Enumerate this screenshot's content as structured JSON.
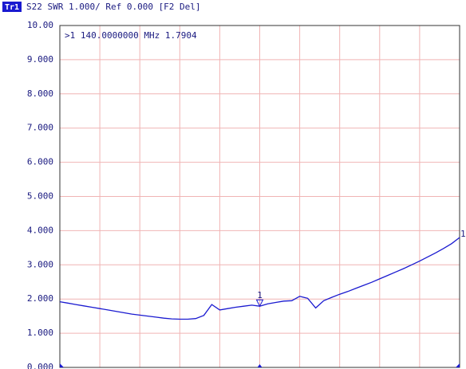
{
  "chart_data": {
    "type": "line",
    "trace_label": "Tr1",
    "header": "S22 SWR 1.000/ Ref 0.000 [F2 Del]",
    "marker_readout": ">1  140.0000000 MHz  1.7904",
    "marker_label": "1",
    "marker_index": 25,
    "trace_end_label": "1",
    "color": "#1a1ad0",
    "grid": true,
    "ylim": [
      0,
      10
    ],
    "yticks": [
      {
        "value": 0,
        "label": "0.000"
      },
      {
        "value": 1,
        "label": "1.000"
      },
      {
        "value": 2,
        "label": "2.000"
      },
      {
        "value": 3,
        "label": "3.000"
      },
      {
        "value": 4,
        "label": "4.000"
      },
      {
        "value": 5,
        "label": "5.000"
      },
      {
        "value": 6,
        "label": "6.000"
      },
      {
        "value": 7,
        "label": "7.000"
      },
      {
        "value": 8,
        "label": "8.000"
      },
      {
        "value": 9,
        "label": "9.000"
      },
      {
        "value": 10,
        "label": "10.00"
      }
    ],
    "values": [
      1.92,
      1.88,
      1.84,
      1.8,
      1.76,
      1.72,
      1.68,
      1.64,
      1.6,
      1.56,
      1.53,
      1.5,
      1.47,
      1.44,
      1.42,
      1.41,
      1.41,
      1.43,
      1.52,
      1.84,
      1.68,
      1.72,
      1.76,
      1.79,
      1.82,
      1.79,
      1.86,
      1.9,
      1.94,
      1.95,
      2.08,
      2.02,
      1.74,
      1.95,
      2.05,
      2.14,
      2.22,
      2.31,
      2.4,
      2.49,
      2.59,
      2.69,
      2.79,
      2.89,
      3.0,
      3.11,
      3.23,
      3.35,
      3.48,
      3.62,
      3.8
    ]
  }
}
